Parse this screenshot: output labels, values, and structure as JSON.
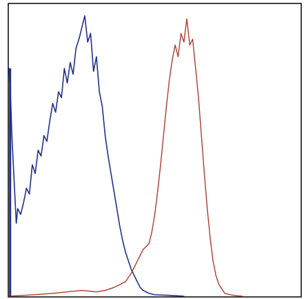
{
  "chart_data": {
    "type": "line",
    "title": "",
    "xlabel": "",
    "ylabel": "",
    "xlim": [
      0,
      100
    ],
    "ylim": [
      0,
      100
    ],
    "grid": false,
    "legend": "none",
    "series": [
      {
        "color": "#1f2f8f",
        "x": [
          0,
          0.5,
          1,
          1.5,
          2,
          2.5,
          3,
          4,
          5,
          6,
          7,
          8,
          9,
          10,
          11,
          12,
          13,
          14,
          15,
          16,
          17,
          18,
          19,
          20,
          21,
          22,
          23,
          24,
          25,
          26,
          27,
          28,
          29,
          30,
          31,
          32,
          33,
          34,
          35,
          36,
          37,
          38,
          39,
          40,
          41,
          42,
          43,
          44,
          45,
          46,
          47,
          48,
          50,
          55,
          60
        ],
        "y": [
          78,
          70,
          55,
          45,
          35,
          25,
          30,
          28,
          32,
          37,
          35,
          45,
          42,
          50,
          48,
          55,
          53,
          60,
          66,
          63,
          70,
          68,
          78,
          73,
          80,
          76,
          85,
          88,
          92,
          96,
          87,
          90,
          77,
          82,
          70,
          65,
          55,
          48,
          42,
          36,
          30,
          24,
          19,
          15,
          12,
          9,
          7,
          5,
          3,
          2,
          1.5,
          1,
          0.5,
          0.3,
          0
        ]
      },
      {
        "color": "#b03a2e",
        "x": [
          0,
          5,
          10,
          15,
          20,
          25,
          30,
          33,
          36,
          38,
          40,
          42,
          44,
          46,
          47,
          48,
          49,
          50,
          51,
          52,
          53,
          54,
          55,
          56,
          57,
          58,
          59,
          60,
          61,
          62,
          63,
          64,
          65,
          66,
          67,
          68,
          69,
          70,
          71,
          72,
          73,
          74,
          76,
          78,
          80
        ],
        "y": [
          0,
          0.3,
          0.6,
          1,
          1.5,
          2,
          1.5,
          2,
          3,
          4,
          5,
          8,
          12,
          16,
          17,
          18,
          22,
          28,
          36,
          45,
          55,
          65,
          74,
          81,
          86,
          82,
          90,
          87,
          95,
          86,
          88,
          78,
          68,
          55,
          42,
          30,
          20,
          12,
          7,
          4,
          2.5,
          1,
          0.5,
          0.2,
          0
        ]
      }
    ]
  }
}
